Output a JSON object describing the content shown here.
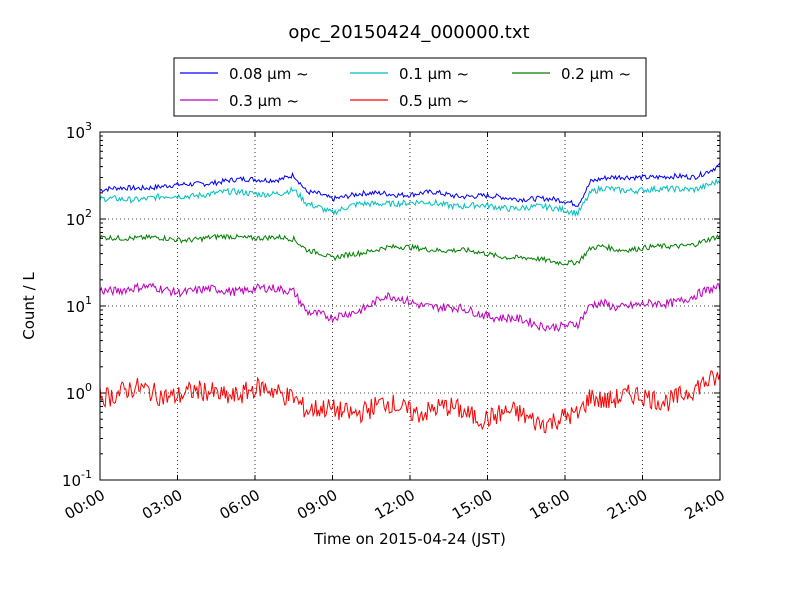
{
  "chart_data": {
    "type": "line",
    "title": "opc_20150424_000000.txt",
    "xlabel": "Time on 2015-04-24 (JST)",
    "ylabel": "Count / L",
    "x_scale": "time",
    "y_scale": "log",
    "xlim": [
      "00:00",
      "24:00"
    ],
    "ylim": [
      0.1,
      1000
    ],
    "x_ticks": [
      "00:00",
      "03:00",
      "06:00",
      "09:00",
      "12:00",
      "15:00",
      "18:00",
      "21:00",
      "24:00"
    ],
    "y_ticks": [
      {
        "value": 0.1,
        "base": "10",
        "exp": "-1"
      },
      {
        "value": 1,
        "base": "10",
        "exp": "0"
      },
      {
        "value": 10,
        "base": "10",
        "exp": "1"
      },
      {
        "value": 100,
        "base": "10",
        "exp": "2"
      },
      {
        "value": 1000,
        "base": "10",
        "exp": "3"
      }
    ],
    "grid": true,
    "legend_position": "top-center",
    "x": [
      "00:00",
      "01:00",
      "02:00",
      "03:00",
      "04:00",
      "05:00",
      "06:00",
      "07:00",
      "07:30",
      "08:00",
      "08:30",
      "09:00",
      "10:00",
      "11:00",
      "12:00",
      "13:00",
      "14:00",
      "15:00",
      "16:00",
      "17:00",
      "18:00",
      "18:30",
      "19:00",
      "19:30",
      "20:00",
      "21:00",
      "22:00",
      "23:00",
      "24:00"
    ],
    "series": [
      {
        "name": "0.08 μm ~",
        "color": "#0000ff",
        "values": [
          215,
          225,
          235,
          240,
          260,
          275,
          285,
          290,
          315,
          200,
          195,
          175,
          190,
          200,
          190,
          200,
          185,
          180,
          175,
          170,
          160,
          150,
          275,
          290,
          295,
          310,
          300,
          305,
          420
        ]
      },
      {
        "name": "0.1 μm ~",
        "color": "#00bfbf",
        "values": [
          165,
          170,
          175,
          180,
          195,
          200,
          200,
          195,
          210,
          150,
          140,
          120,
          145,
          155,
          150,
          155,
          140,
          140,
          135,
          135,
          130,
          120,
          200,
          220,
          215,
          220,
          215,
          225,
          270
        ]
      },
      {
        "name": "0.2 μm ~",
        "color": "#008000",
        "values": [
          60,
          62,
          60,
          58,
          60,
          62,
          62,
          60,
          58,
          45,
          42,
          35,
          40,
          48,
          46,
          45,
          43,
          40,
          36,
          34,
          32,
          32,
          45,
          48,
          45,
          46,
          48,
          52,
          62
        ]
      },
      {
        "name": "0.3 μm ~",
        "color": "#bf00bf",
        "values": [
          15,
          16,
          16,
          15,
          15,
          15,
          16,
          15,
          15,
          9,
          8,
          7,
          9,
          13,
          11,
          10,
          9,
          8,
          7,
          6,
          6,
          6,
          10,
          11,
          10,
          10,
          11,
          13,
          16
        ]
      },
      {
        "name": "0.5 μm ~",
        "color": "#ff0000",
        "values": [
          1.0,
          1.05,
          1.0,
          1.0,
          0.95,
          1.0,
          1.05,
          1.0,
          1.0,
          0.65,
          0.6,
          0.6,
          0.65,
          0.7,
          0.65,
          0.65,
          0.6,
          0.55,
          0.55,
          0.5,
          0.5,
          0.5,
          0.95,
          0.9,
          0.9,
          0.85,
          0.9,
          1.0,
          1.6
        ]
      }
    ]
  }
}
